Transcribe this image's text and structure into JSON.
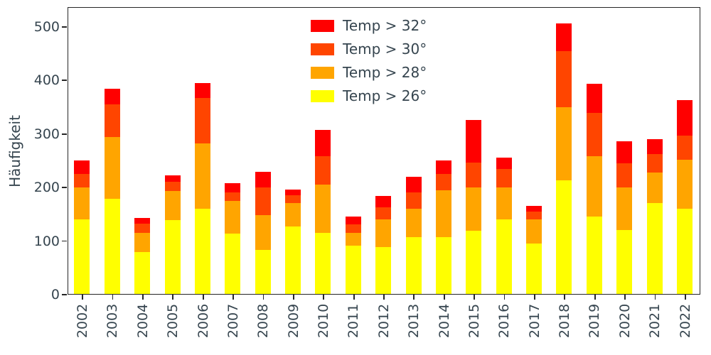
{
  "chart_data": {
    "type": "bar",
    "stacked": true,
    "title": "",
    "xlabel": "",
    "ylabel": "Häufigkeit",
    "grid": false,
    "legend_position": "upper center",
    "ylim": [
      0,
      537
    ],
    "yticks": [
      0,
      100,
      200,
      300,
      400,
      500
    ],
    "categories": [
      "2002",
      "2003",
      "2004",
      "2005",
      "2006",
      "2007",
      "2008",
      "2009",
      "2010",
      "2011",
      "2012",
      "2013",
      "2014",
      "2015",
      "2016",
      "2017",
      "2018",
      "2019",
      "2020",
      "2021",
      "2022"
    ],
    "series": [
      {
        "name": "Temp > 26°",
        "color": "#ffff00",
        "values": [
          140,
          178,
          78,
          138,
          160,
          113,
          83,
          127,
          115,
          90,
          88,
          107,
          107,
          118,
          140,
          95,
          213,
          145,
          120,
          170,
          160
        ]
      },
      {
        "name": "Temp > 28°",
        "color": "#ffa500",
        "values": [
          60,
          117,
          37,
          55,
          123,
          62,
          65,
          43,
          90,
          25,
          52,
          53,
          88,
          82,
          60,
          45,
          137,
          113,
          80,
          58,
          92
        ]
      },
      {
        "name": "Temp > 30°",
        "color": "#ff4500",
        "values": [
          25,
          60,
          17,
          17,
          85,
          15,
          52,
          15,
          53,
          15,
          23,
          30,
          30,
          47,
          35,
          15,
          105,
          82,
          45,
          34,
          45
        ]
      },
      {
        "name": "Temp > 32°",
        "color": "#ff0000",
        "values": [
          25,
          30,
          11,
          12,
          27,
          18,
          29,
          11,
          50,
          15,
          21,
          30,
          25,
          80,
          21,
          10,
          52,
          54,
          42,
          28,
          66
        ]
      }
    ],
    "totals": [
      250,
      385,
      143,
      222,
      395,
      208,
      229,
      196,
      308,
      145,
      184,
      220,
      250,
      327,
      256,
      165,
      507,
      394,
      287,
      290,
      363
    ]
  }
}
